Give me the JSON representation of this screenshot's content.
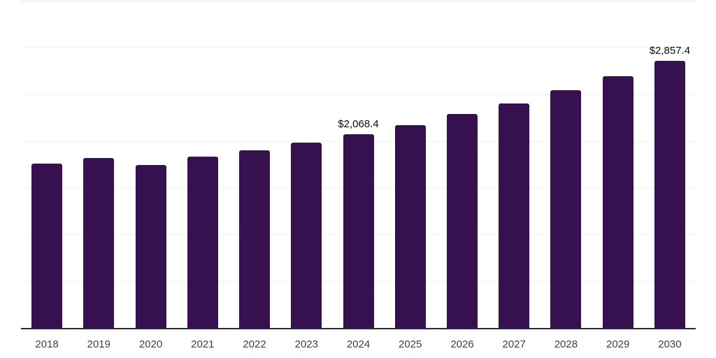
{
  "chart_data": {
    "type": "bar",
    "title": "",
    "xlabel": "",
    "ylabel": "",
    "categories": [
      "2018",
      "2019",
      "2020",
      "2021",
      "2022",
      "2023",
      "2024",
      "2025",
      "2026",
      "2027",
      "2028",
      "2029",
      "2030"
    ],
    "values": [
      1760,
      1820,
      1740,
      1830,
      1900,
      1980,
      2068.4,
      2170,
      2290,
      2400,
      2545,
      2695,
      2857.4
    ],
    "data_labels": {
      "2024": "$2,068.4",
      "2030": "$2,857.4"
    },
    "ylim": [
      0,
      3500
    ],
    "gridline_step": 500,
    "grid": true,
    "legend": false,
    "colors": {
      "bar": "#37114f",
      "gridline": "#f2f2f4",
      "top_gridline": "#e8e8ea",
      "axis_line": "#2b2b2b",
      "value_label": "#0a0a0a",
      "tick_label": "#3f3f3f"
    }
  }
}
